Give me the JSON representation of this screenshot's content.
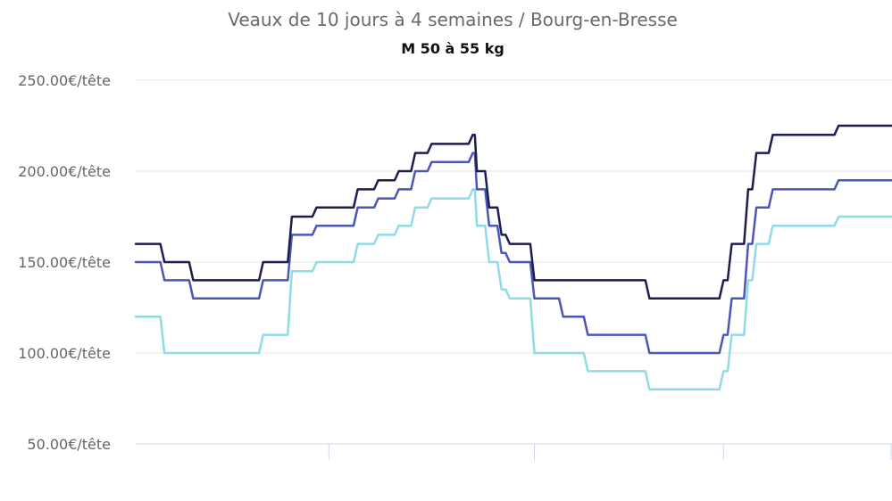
{
  "chart_data": {
    "type": "line",
    "title": "Veaux de 10 jours à 4 semaines / Bourg-en-Bresse",
    "subtitle": "M 50 à 55 kg",
    "ylim": [
      50,
      250
    ],
    "y_ticks": [
      250,
      200,
      150,
      100,
      50
    ],
    "y_tick_labels": [
      "250.00€/tête",
      "200.00€/tête",
      "150.00€/tête",
      "100.00€/tête",
      "50.00€/tête"
    ],
    "x": [
      0,
      6,
      7,
      13,
      14,
      30,
      31,
      37,
      38,
      43,
      44,
      47,
      48,
      53,
      54,
      58,
      59,
      63,
      64,
      67,
      68,
      71,
      72,
      75,
      76,
      81,
      82,
      82.5,
      83,
      85,
      86,
      88,
      89,
      90,
      91,
      96,
      97,
      103,
      104,
      109,
      110,
      116,
      117,
      124,
      125,
      134,
      135,
      142,
      143,
      144,
      145,
      148,
      149,
      150,
      151,
      154,
      155,
      170,
      171,
      174,
      175,
      183,
      184
    ],
    "grid": true,
    "series": [
      {
        "color": "#1c1f4e",
        "values": [
          160,
          160,
          150,
          150,
          140,
          140,
          150,
          150,
          175,
          175,
          180,
          180,
          180,
          180,
          190,
          190,
          195,
          195,
          200,
          200,
          210,
          210,
          215,
          215,
          215,
          215,
          220,
          220,
          200,
          200,
          180,
          180,
          165,
          165,
          160,
          160,
          140,
          140,
          140,
          140,
          140,
          140,
          140,
          140,
          130,
          130,
          130,
          130,
          140,
          140,
          160,
          160,
          190,
          190,
          210,
          210,
          220,
          220,
          225,
          225,
          225,
          225,
          225
        ]
      },
      {
        "color": "#4b56b7",
        "values": [
          150,
          150,
          140,
          140,
          130,
          130,
          140,
          140,
          165,
          165,
          170,
          170,
          170,
          170,
          180,
          180,
          185,
          185,
          190,
          190,
          200,
          200,
          205,
          205,
          205,
          205,
          210,
          210,
          190,
          190,
          170,
          170,
          155,
          155,
          150,
          150,
          130,
          130,
          120,
          120,
          110,
          110,
          110,
          110,
          100,
          100,
          100,
          100,
          110,
          110,
          130,
          130,
          160,
          160,
          180,
          180,
          190,
          190,
          195,
          195,
          195,
          195,
          195
        ]
      },
      {
        "color": "#8fdbe6",
        "values": [
          120,
          120,
          100,
          100,
          100,
          100,
          110,
          110,
          145,
          145,
          150,
          150,
          150,
          150,
          160,
          160,
          165,
          165,
          170,
          170,
          180,
          180,
          185,
          185,
          185,
          185,
          190,
          190,
          170,
          170,
          150,
          150,
          135,
          135,
          130,
          130,
          100,
          100,
          100,
          100,
          90,
          90,
          90,
          90,
          80,
          80,
          80,
          80,
          90,
          90,
          110,
          110,
          140,
          140,
          160,
          160,
          170,
          170,
          175,
          175,
          175,
          175,
          175
        ]
      }
    ]
  }
}
